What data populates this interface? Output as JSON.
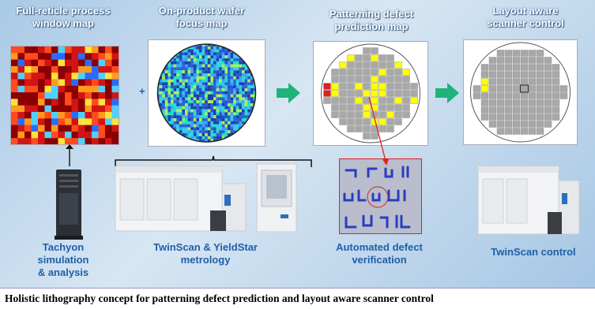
{
  "titles": {
    "process_window_map": "Full-reticle process\nwindow map",
    "focus_map": "On-product wafer\nfocus map",
    "defect_prediction_map": "Patterning defect\nprediction map",
    "scanner_control": "Layout aware\nscanner control"
  },
  "labels": {
    "tachyon": "Tachyon\nsimulation\n& analysis",
    "metrology": "TwinScan & YieldStar\nmetrology",
    "defect_verification": "Automated defect\nverification",
    "twinscan_control": "TwinScan control"
  },
  "plus_sign": "+",
  "caption": "Holistic lithography concept for patterning defect prediction and layout aware scanner control",
  "colors": {
    "arrow": "#1fb37a",
    "defect_yellow": "#ffff00",
    "die_gray": "#a8a8a8",
    "accent_red": "#e02020"
  }
}
